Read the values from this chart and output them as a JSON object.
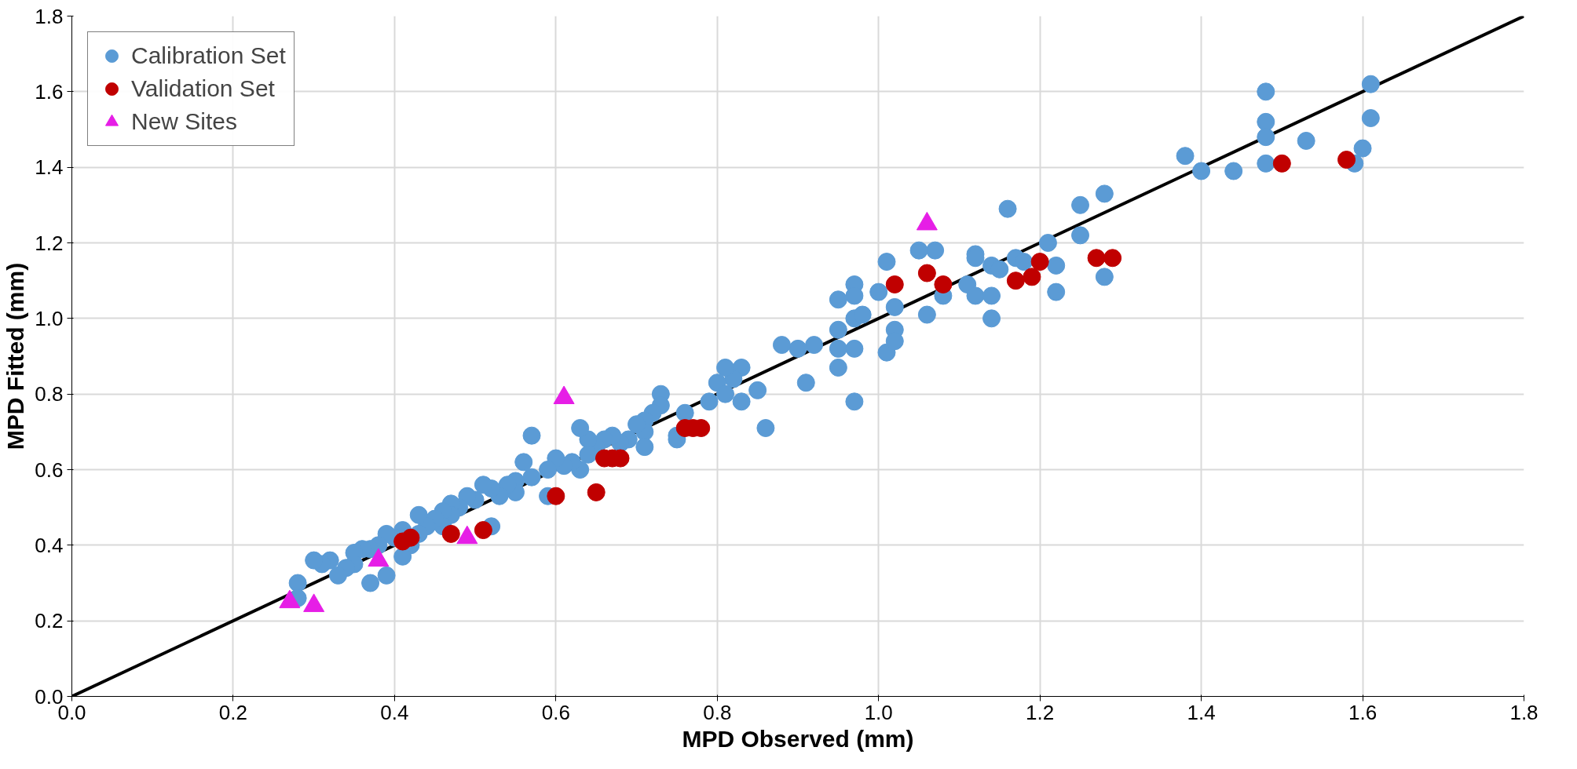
{
  "chart_data": {
    "type": "scatter",
    "xlabel": "MPD Observed (mm)",
    "ylabel": "MPD Fitted (mm)",
    "xlim": [
      0,
      1.8
    ],
    "ylim": [
      0,
      1.8
    ],
    "xticks": [
      {
        "value": 0,
        "label": "0.0"
      },
      {
        "value": 0.2,
        "label": "0.2"
      },
      {
        "value": 0.4,
        "label": "0.4"
      },
      {
        "value": 0.6,
        "label": "0.6"
      },
      {
        "value": 0.8,
        "label": "0.8"
      },
      {
        "value": 1.0,
        "label": "1.0"
      },
      {
        "value": 1.2,
        "label": "1.2"
      },
      {
        "value": 1.4,
        "label": "1.4"
      },
      {
        "value": 1.6,
        "label": "1.6"
      },
      {
        "value": 1.8,
        "label": "1.8"
      }
    ],
    "yticks": [
      {
        "value": 0,
        "label": "0.0"
      },
      {
        "value": 0.2,
        "label": "0.2"
      },
      {
        "value": 0.4,
        "label": "0.4"
      },
      {
        "value": 0.6,
        "label": "0.6"
      },
      {
        "value": 0.8,
        "label": "0.8"
      },
      {
        "value": 1.0,
        "label": "1.0"
      },
      {
        "value": 1.2,
        "label": "1.2"
      },
      {
        "value": 1.4,
        "label": "1.4"
      },
      {
        "value": 1.6,
        "label": "1.6"
      },
      {
        "value": 1.8,
        "label": "1.8"
      }
    ],
    "grid": true,
    "legend": "top left",
    "series": [
      {
        "type": "line",
        "color": "#000000",
        "line_style": "solid",
        "x": [
          0,
          1.8
        ],
        "values": [
          0,
          1.8
        ]
      },
      {
        "name": "Calibration Set",
        "color": "#5b9bd5",
        "marker": "circle",
        "x": [
          1.38,
          1.4,
          1.44,
          1.48,
          1.48,
          1.48,
          1.48,
          1.53,
          1.59,
          1.6,
          1.61,
          1.61,
          1.25,
          1.28,
          1.25,
          1.28,
          1.22,
          1.22,
          1.21,
          1.16,
          1.17,
          1.18,
          1.12,
          1.12,
          1.11,
          1.12,
          1.14,
          1.15,
          1.14,
          1.14,
          1.08,
          1.07,
          1.05,
          1.01,
          1.06,
          1.02,
          1.02,
          1.01,
          1.02,
          1.0,
          0.97,
          0.97,
          0.97,
          0.98,
          0.95,
          0.95,
          0.95,
          0.97,
          0.95,
          0.92,
          0.9,
          0.88,
          0.91,
          0.97,
          0.86,
          0.85,
          0.83,
          0.82,
          0.81,
          0.8,
          0.81,
          0.83,
          0.79,
          0.76,
          0.75,
          0.73,
          0.73,
          0.72,
          0.71,
          0.71,
          0.7,
          0.69,
          0.71,
          0.75,
          0.68,
          0.67,
          0.66,
          0.65,
          0.64,
          0.63,
          0.64,
          0.63,
          0.62,
          0.61,
          0.6,
          0.59,
          0.59,
          0.57,
          0.57,
          0.56,
          0.55,
          0.55,
          0.54,
          0.53,
          0.52,
          0.51,
          0.52,
          0.5,
          0.49,
          0.48,
          0.47,
          0.47,
          0.46,
          0.46,
          0.45,
          0.44,
          0.43,
          0.43,
          0.42,
          0.41,
          0.4,
          0.41,
          0.39,
          0.38,
          0.39,
          0.37,
          0.36,
          0.35,
          0.35,
          0.37,
          0.34,
          0.33,
          0.32,
          0.31,
          0.3,
          0.28,
          0.28
        ],
        "values": [
          1.43,
          1.39,
          1.39,
          1.6,
          1.52,
          1.48,
          1.41,
          1.47,
          1.41,
          1.45,
          1.62,
          1.53,
          1.3,
          1.33,
          1.22,
          1.11,
          1.07,
          1.14,
          1.2,
          1.29,
          1.16,
          1.15,
          1.17,
          1.16,
          1.09,
          1.06,
          1.14,
          1.13,
          1.06,
          1.0,
          1.06,
          1.18,
          1.18,
          1.15,
          1.01,
          1.03,
          0.97,
          0.91,
          0.94,
          1.07,
          1.09,
          1.06,
          1.0,
          1.01,
          1.05,
          0.97,
          0.92,
          0.92,
          0.87,
          0.93,
          0.92,
          0.93,
          0.83,
          0.78,
          0.71,
          0.81,
          0.87,
          0.84,
          0.87,
          0.83,
          0.8,
          0.78,
          0.78,
          0.75,
          0.69,
          0.8,
          0.77,
          0.75,
          0.73,
          0.7,
          0.72,
          0.68,
          0.66,
          0.68,
          0.67,
          0.69,
          0.68,
          0.66,
          0.68,
          0.71,
          0.64,
          0.6,
          0.62,
          0.61,
          0.63,
          0.6,
          0.53,
          0.69,
          0.58,
          0.62,
          0.57,
          0.54,
          0.56,
          0.53,
          0.55,
          0.56,
          0.45,
          0.52,
          0.53,
          0.5,
          0.51,
          0.48,
          0.49,
          0.45,
          0.47,
          0.45,
          0.48,
          0.43,
          0.4,
          0.44,
          0.42,
          0.37,
          0.43,
          0.4,
          0.32,
          0.39,
          0.39,
          0.38,
          0.35,
          0.3,
          0.34,
          0.32,
          0.36,
          0.35,
          0.36,
          0.3,
          0.26
        ]
      },
      {
        "name": "Validation Set",
        "color": "#c00000",
        "marker": "circle",
        "x": [
          0.41,
          0.42,
          0.47,
          0.51,
          0.6,
          0.65,
          0.66,
          0.67,
          0.68,
          0.76,
          0.77,
          0.78,
          1.02,
          1.06,
          1.08,
          1.17,
          1.19,
          1.2,
          1.27,
          1.29,
          1.5,
          1.58
        ],
        "values": [
          0.41,
          0.42,
          0.43,
          0.44,
          0.53,
          0.54,
          0.63,
          0.63,
          0.63,
          0.71,
          0.71,
          0.71,
          1.09,
          1.12,
          1.09,
          1.1,
          1.11,
          1.15,
          1.16,
          1.16,
          1.41,
          1.42
        ]
      },
      {
        "name": "New Sites",
        "color": "#e61ee6",
        "marker": "triangle",
        "x": [
          0.27,
          0.3,
          0.38,
          0.49,
          0.61,
          1.06
        ],
        "values": [
          0.25,
          0.24,
          0.36,
          0.42,
          0.79,
          1.25
        ]
      }
    ]
  }
}
